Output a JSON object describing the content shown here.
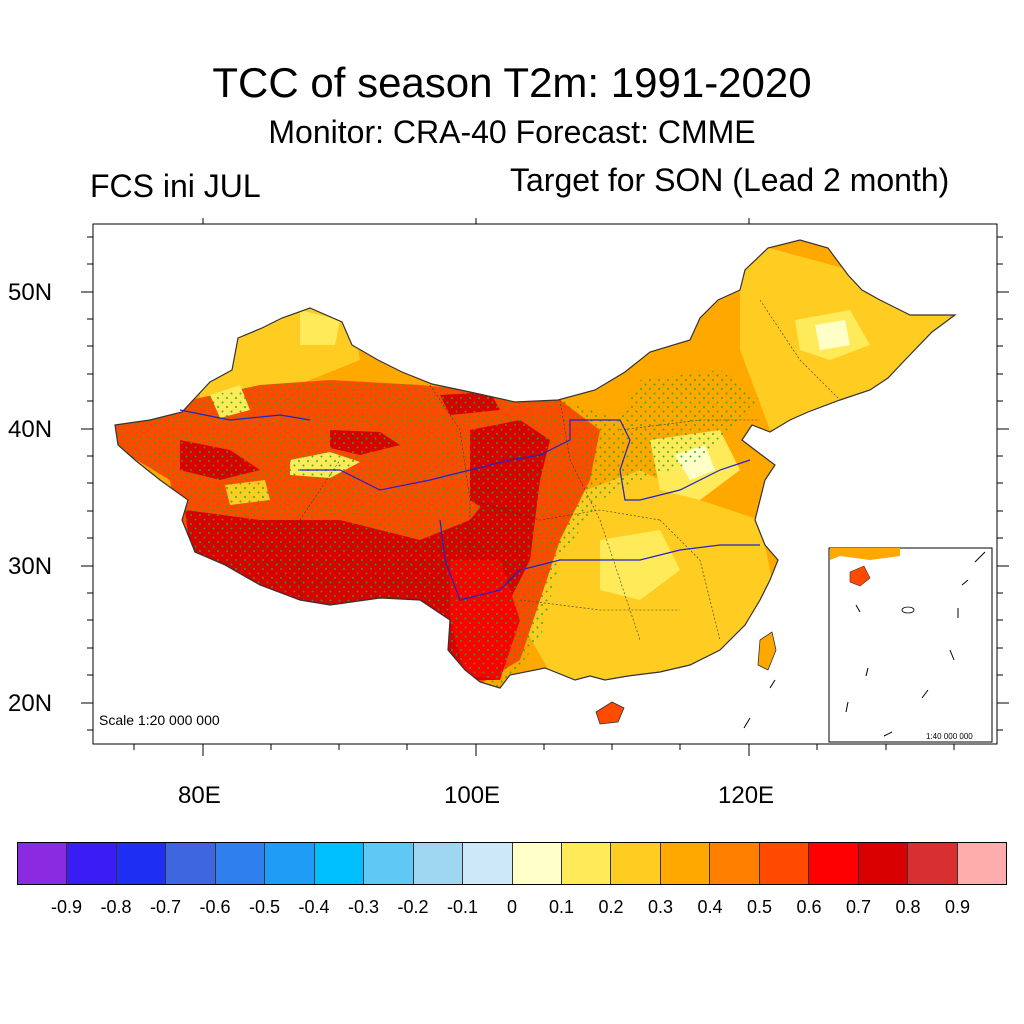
{
  "title": "TCC of season T2m: 1991-2020",
  "subtitle": "Monitor: CRA-40   Forecast: CMME",
  "left_label": "FCS ini JUL",
  "right_label": "Target for SON (Lead 2 month)",
  "axes": {
    "lat_labels": [
      "50N",
      "40N",
      "30N",
      "20N"
    ],
    "lon_labels": [
      "80E",
      "100E",
      "120E"
    ]
  },
  "map": {
    "scale_note": "Scale 1:20 000 000",
    "inset_scale_note": "1:40 000 000",
    "stipple_color": "#22aa22",
    "border_color": "#333333",
    "river_color": "#2222cc"
  },
  "colorbar": {
    "colors": [
      "#8a2be2",
      "#3a1cf5",
      "#1e2ef2",
      "#3e66de",
      "#2f80ee",
      "#1f9cf5",
      "#00bfff",
      "#5fc8f5",
      "#9fd6f0",
      "#cde9f7",
      "#ffffc8",
      "#ffeb5a",
      "#ffcc22",
      "#ffa800",
      "#ff8000",
      "#ff4a00",
      "#ff0000",
      "#d80000",
      "#d83030",
      "#ffacac"
    ],
    "labels": [
      "-0.9",
      "-0.8",
      "-0.7",
      "-0.6",
      "-0.5",
      "-0.4",
      "-0.3",
      "-0.2",
      "-0.1",
      "0",
      "0.1",
      "0.2",
      "0.3",
      "0.4",
      "0.5",
      "0.6",
      "0.7",
      "0.8",
      "0.9"
    ]
  }
}
